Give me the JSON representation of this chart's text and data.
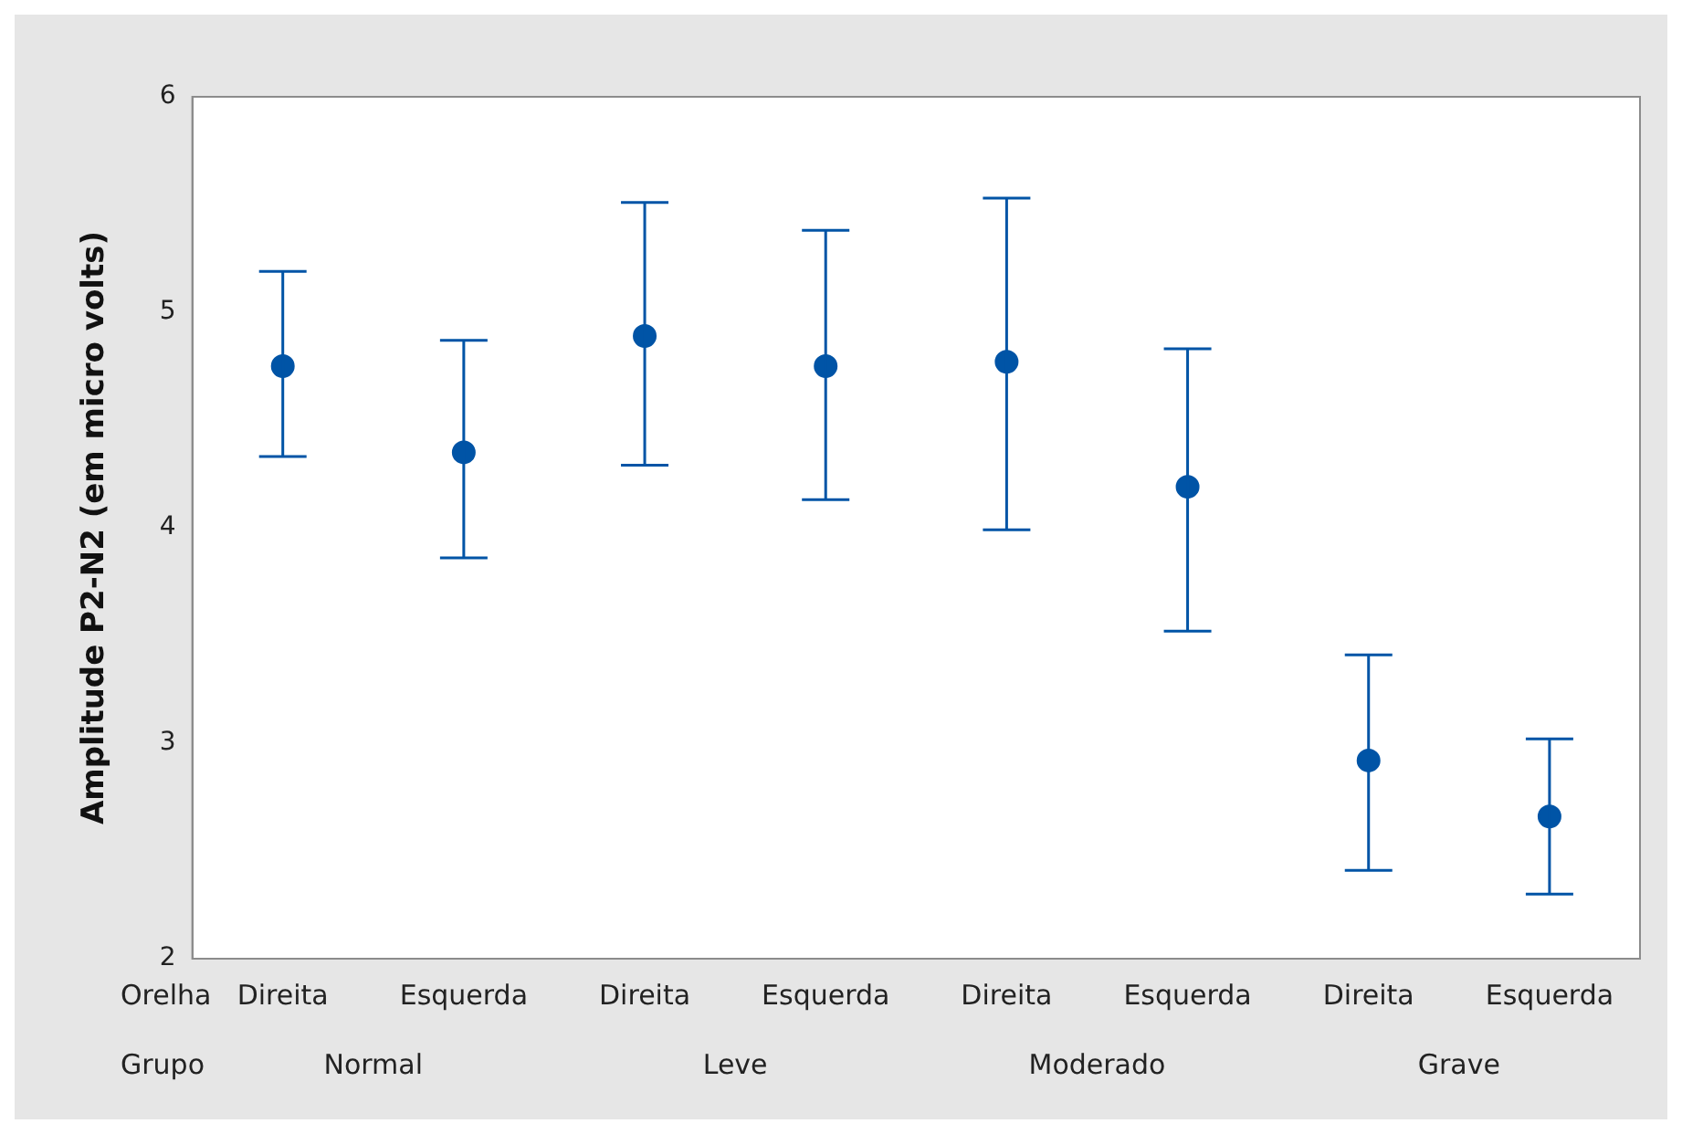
{
  "chart_data": {
    "type": "scatter",
    "ylabel": "Amplitude P2-N2 (em micro volts)",
    "categories": [
      "Direita",
      "Esquerda",
      "Direita",
      "Esquerda",
      "Direita",
      "Esquerda",
      "Direita",
      "Esquerda"
    ],
    "values": [
      4.75,
      4.35,
      4.89,
      4.75,
      4.77,
      4.19,
      2.92,
      2.66
    ],
    "errors": [
      [
        4.33,
        5.19
      ],
      [
        3.86,
        4.87
      ],
      [
        4.29,
        5.51
      ],
      [
        4.13,
        5.38
      ],
      [
        3.99,
        5.53
      ],
      [
        3.52,
        4.83
      ],
      [
        2.41,
        3.41
      ],
      [
        2.3,
        3.02
      ]
    ],
    "color": "#0054a6",
    "marker": "circle",
    "grid": false,
    "legend": false,
    "ylim": [
      2,
      6
    ],
    "yticks": [
      2,
      3,
      4,
      5,
      6
    ],
    "annotations": [
      "Orelha",
      "Grupo",
      "Normal",
      "Leve",
      "Moderado",
      "Grave"
    ]
  }
}
